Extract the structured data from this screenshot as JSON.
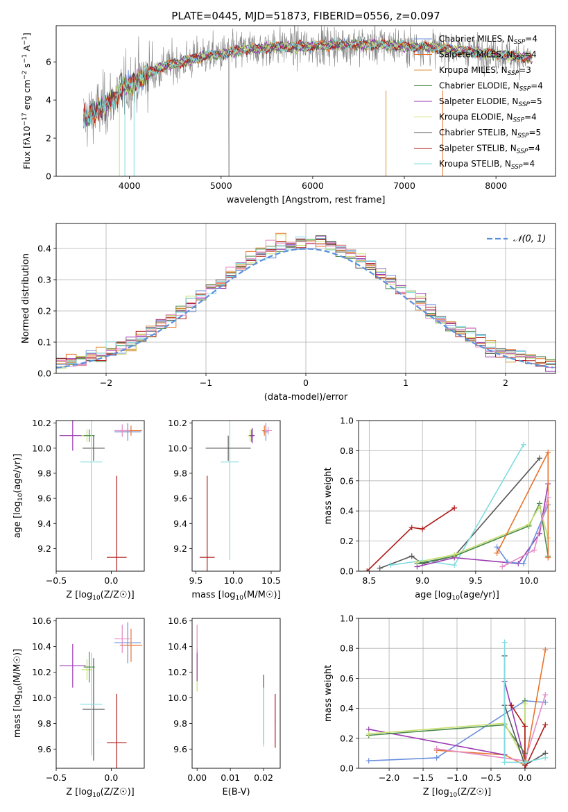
{
  "figure_title": "PLATE=0445, MJD=51873, FIBERID=0556, z=0.097",
  "colors": {
    "Chabrier MILES": "#6a8fdc",
    "Salpeter MILES": "#e8722a",
    "Kroupa MILES": "#d8903a",
    "Chabrier ELODIE": "#4a8a4a",
    "Salpeter ELODIE": "#9a3ab0",
    "Kroupa ELODIE": "#c8e070",
    "Chabrier STELIB": "#555555",
    "Salpeter STELIB": "#b01818",
    "Kroupa STELIB": "#80dce0",
    "pink": "#e38ac4",
    "grid": "#b0b0b0",
    "normal_curve": "#5b8fdc",
    "data_grey": "#808080"
  },
  "chart_data": [
    {
      "id": "spectrum",
      "type": "line",
      "title": "PLATE=0445, MJD=51873, FIBERID=0556, z=0.097",
      "xlabel": "wavelength [Angstrom, rest frame]",
      "ylabel": "Flux [fλ10⁻¹⁷ erg cm⁻² s⁻¹ A⁻¹]",
      "xlim": [
        3200,
        8650
      ],
      "ylim": [
        0,
        7.9
      ],
      "xticks": [
        4000,
        5000,
        6000,
        7000,
        8000
      ],
      "yticks": [
        0,
        2,
        4,
        6
      ],
      "grid": false,
      "legend_position": "right",
      "legend": [
        "Chabrier MILES, N_SSP=4",
        "Salpeter MILES, N_SSP=4",
        "Kroupa MILES, N_SSP=3",
        "Chabrier ELODIE, N_SSP=4",
        "Salpeter ELODIE, N_SSP=5",
        "Kroupa ELODIE, N_SSP=4",
        "Chabrier STELIB, N_SSP=5",
        "Salpeter STELIB, N_SSP=4",
        "Kroupa STELIB, N_SSP=4"
      ],
      "continuum": {
        "x": [
          3500,
          3600,
          3700,
          3800,
          3900,
          4000,
          4100,
          4200,
          4400,
          4600,
          4800,
          5000,
          5200,
          5400,
          5600,
          5800,
          6000,
          6200,
          6400,
          6600,
          6800,
          7000,
          7200,
          7400,
          7600,
          7800,
          8000,
          8200,
          8400
        ],
        "y": [
          3.0,
          3.3,
          3.6,
          4.0,
          4.5,
          4.8,
          5.1,
          5.4,
          5.8,
          6.0,
          6.3,
          6.4,
          6.6,
          6.7,
          6.8,
          6.8,
          6.8,
          6.9,
          6.9,
          6.9,
          6.9,
          6.8,
          6.8,
          6.7,
          6.6,
          6.5,
          6.4,
          6.3,
          6.2
        ]
      },
      "data_noise": 1.3
    },
    {
      "id": "residuals",
      "type": "line",
      "xlabel": "(data-model)/error",
      "ylabel": "Normed distribution",
      "xlim": [
        -2.5,
        2.5
      ],
      "ylim": [
        0,
        0.48
      ],
      "xticks": [
        -2,
        -1,
        0,
        1,
        2
      ],
      "yticks": [
        0.0,
        0.1,
        0.2,
        0.3,
        0.4
      ],
      "grid": true,
      "legend": [
        "N(0,1)"
      ],
      "legend_position": "top-right",
      "bin_width": 0.1
    },
    {
      "id": "age_vs_Z",
      "type": "scatter",
      "xlabel": "Z [log10(Z/Z☉)]",
      "ylabel": "age  [log10(age/yr)]",
      "xlim": [
        -0.5,
        0.3
      ],
      "ylim": [
        9.02,
        10.22
      ],
      "xticks": [
        -0.5,
        0.0
      ],
      "yticks": [
        9.2,
        9.4,
        9.6,
        9.8,
        10.0,
        10.2
      ],
      "points": [
        {
          "model": "Salpeter ELODIE",
          "x": -0.35,
          "y": 10.1,
          "xerr": 0.12,
          "yerr": 0.12
        },
        {
          "model": "Kroupa ELODIE",
          "x": -0.22,
          "y": 10.1,
          "xerr": 0.05,
          "yerr": 0.05
        },
        {
          "model": "Chabrier ELODIE",
          "x": -0.2,
          "y": 10.1,
          "xerr": 0.05,
          "yerr": 0.05
        },
        {
          "model": "Chabrier STELIB",
          "x": -0.16,
          "y": 10.0,
          "xerr": 0.1,
          "yerr": 0.1
        },
        {
          "model": "Kroupa STELIB",
          "x": -0.18,
          "y": 9.89,
          "xerr": 0.1,
          "yerr": 0.78
        },
        {
          "model": "Salpeter STELIB",
          "x": 0.05,
          "y": 9.13,
          "xerr": 0.09,
          "yerr": 0.65
        },
        {
          "model": "Chabrier MILES",
          "x": 0.15,
          "y": 10.13,
          "xerr": 0.12,
          "yerr": 0.07
        },
        {
          "model": "Salpeter MILES",
          "x": 0.18,
          "y": 10.14,
          "xerr": 0.1,
          "yerr": 0.04
        },
        {
          "model": "pink",
          "x": 0.1,
          "y": 10.14,
          "xerr": 0.07,
          "yerr": 0.05
        }
      ]
    },
    {
      "id": "age_vs_mass",
      "type": "scatter",
      "xlabel": "mass [log10(M/M☉)]",
      "xlim": [
        9.45,
        10.62
      ],
      "ylim": [
        9.02,
        10.22
      ],
      "xticks": [
        9.5,
        10.0,
        10.5
      ],
      "yticks": [
        9.2,
        9.4,
        9.6,
        9.8,
        10.0,
        10.2
      ],
      "points": [
        {
          "model": "Salpeter STELIB",
          "x": 9.65,
          "y": 9.13,
          "xerr": 0.1,
          "yerr": 0.65
        },
        {
          "model": "Kroupa STELIB",
          "x": 9.95,
          "y": 9.89,
          "xerr": 0.12,
          "yerr": 0.78
        },
        {
          "model": "Chabrier STELIB",
          "x": 9.93,
          "y": 10.0,
          "xerr": 0.3,
          "yerr": 0.1
        },
        {
          "model": "Kroupa ELODIE",
          "x": 10.22,
          "y": 10.1,
          "xerr": 0.03,
          "yerr": 0.05
        },
        {
          "model": "Chabrier ELODIE",
          "x": 10.24,
          "y": 10.1,
          "xerr": 0.03,
          "yerr": 0.05
        },
        {
          "model": "Salpeter ELODIE",
          "x": 10.25,
          "y": 10.1,
          "xerr": 0.03,
          "yerr": 0.06
        },
        {
          "model": "Chabrier MILES",
          "x": 10.43,
          "y": 10.13,
          "xerr": 0.04,
          "yerr": 0.07
        },
        {
          "model": "Salpeter MILES",
          "x": 10.41,
          "y": 10.14,
          "xerr": 0.03,
          "yerr": 0.04
        },
        {
          "model": "pink",
          "x": 10.46,
          "y": 10.14,
          "xerr": 0.05,
          "yerr": 0.03
        }
      ]
    },
    {
      "id": "weight_vs_age",
      "type": "line",
      "xlabel": "age  [log10(age/yr)]",
      "ylabel": "mass weight",
      "xlim": [
        8.4,
        10.25
      ],
      "ylim": [
        0,
        1.0
      ],
      "xticks": [
        8.5,
        9.0,
        9.5,
        10.0
      ],
      "yticks": [
        0.0,
        0.2,
        0.4,
        0.6,
        0.8,
        1.0
      ],
      "grid": true,
      "series": [
        {
          "model": "Salpeter STELIB",
          "x": [
            8.48,
            8.9,
            9.0,
            9.3
          ],
          "y": [
            0.0,
            0.29,
            0.28,
            0.42
          ]
        },
        {
          "model": "Chabrier STELIB",
          "x": [
            8.6,
            8.9,
            9.0,
            9.3,
            10.1
          ],
          "y": [
            0.02,
            0.1,
            0.05,
            0.1,
            0.75
          ]
        },
        {
          "model": "Kroupa STELIB",
          "x": [
            8.7,
            9.0,
            9.3,
            9.95
          ],
          "y": [
            0.04,
            0.07,
            0.04,
            0.84
          ]
        },
        {
          "model": "Chabrier ELODIE",
          "x": [
            8.95,
            9.3,
            10.0,
            10.1,
            10.18
          ],
          "y": [
            0.05,
            0.1,
            0.3,
            0.45,
            0.1
          ]
        },
        {
          "model": "Salpeter ELODIE",
          "x": [
            8.95,
            9.3,
            9.9,
            10.1,
            10.18
          ],
          "y": [
            0.03,
            0.09,
            0.05,
            0.25,
            0.58
          ]
        },
        {
          "model": "Kroupa ELODIE",
          "x": [
            8.95,
            9.3,
            10.0,
            10.1,
            10.18
          ],
          "y": [
            0.06,
            0.11,
            0.31,
            0.43,
            0.22
          ]
        },
        {
          "model": "Chabrier MILES",
          "x": [
            9.7,
            9.8,
            9.95,
            10.18
          ],
          "y": [
            0.16,
            0.06,
            0.05,
            0.44
          ]
        },
        {
          "model": "Salpeter MILES",
          "x": [
            9.7,
            10.18,
            10.18
          ],
          "y": [
            0.12,
            0.79,
            0.09
          ]
        },
        {
          "model": "pink",
          "x": [
            9.75,
            10.05,
            10.18
          ],
          "y": [
            0.03,
            0.14,
            0.49
          ]
        }
      ]
    },
    {
      "id": "mass_vs_Z",
      "type": "scatter",
      "xlabel": "Z [log10(Z/Z☉)]",
      "ylabel": "mass [log10(M/M☉)]",
      "xlim": [
        -0.5,
        0.3
      ],
      "ylim": [
        9.45,
        10.62
      ],
      "xticks": [
        -0.5,
        0.0
      ],
      "yticks": [
        9.6,
        9.8,
        10.0,
        10.2,
        10.4,
        10.6
      ],
      "points": [
        {
          "model": "Salpeter ELODIE",
          "x": -0.35,
          "y": 10.25,
          "xerr": 0.12,
          "yerr": 0.17
        },
        {
          "model": "Kroupa ELODIE",
          "x": -0.22,
          "y": 10.22,
          "xerr": 0.05,
          "yerr": 0.08
        },
        {
          "model": "Chabrier ELODIE",
          "x": -0.2,
          "y": 10.24,
          "xerr": 0.05,
          "yerr": 0.12
        },
        {
          "model": "Chabrier STELIB",
          "x": -0.16,
          "y": 9.91,
          "xerr": 0.1,
          "yerr": 0.4
        },
        {
          "model": "Kroupa STELIB",
          "x": -0.18,
          "y": 9.95,
          "xerr": 0.1,
          "yerr": 0.4
        },
        {
          "model": "Salpeter STELIB",
          "x": 0.05,
          "y": 9.65,
          "xerr": 0.09,
          "yerr": 0.38
        },
        {
          "model": "Chabrier MILES",
          "x": 0.15,
          "y": 10.43,
          "xerr": 0.12,
          "yerr": 0.16
        },
        {
          "model": "Salpeter MILES",
          "x": 0.18,
          "y": 10.41,
          "xerr": 0.1,
          "yerr": 0.13
        },
        {
          "model": "pink",
          "x": 0.1,
          "y": 10.46,
          "xerr": 0.07,
          "yerr": 0.11
        }
      ]
    },
    {
      "id": "mass_vs_ebv",
      "type": "scatter",
      "xlabel": "E(B-V)",
      "xlim": [
        -0.0015,
        0.025
      ],
      "ylim": [
        9.45,
        10.62
      ],
      "xticks": [
        0.0,
        0.01,
        0.02
      ],
      "yticks": [
        9.6,
        9.8,
        10.0,
        10.2,
        10.4,
        10.6
      ],
      "points": [
        {
          "model": "Kroupa ELODIE",
          "x": 0.0,
          "y": 10.22,
          "xerr": 0.0001,
          "yerr": 0.17
        },
        {
          "model": "Salpeter ELODIE",
          "x": 0.0,
          "y": 10.25,
          "xerr": 0.0001,
          "yerr": 0.12
        },
        {
          "model": "pink",
          "x": 0.0,
          "y": 10.46,
          "xerr": 0.0001,
          "yerr": 0.11
        },
        {
          "model": "Chabrier STELIB",
          "x": 0.02,
          "y": 9.91,
          "xerr": 0.0001,
          "yerr": 0.27
        },
        {
          "model": "Kroupa STELIB",
          "x": 0.02,
          "y": 9.85,
          "xerr": 0.0001,
          "yerr": 0.23
        },
        {
          "model": "Salpeter STELIB",
          "x": 0.0235,
          "y": 9.82,
          "xerr": 0.0001,
          "yerr": 0.21
        }
      ]
    },
    {
      "id": "weight_vs_Z",
      "type": "line",
      "xlabel": "Z [log10(Z/Z☉)]",
      "ylabel": "mass weight",
      "xlim": [
        -2.45,
        0.45
      ],
      "ylim": [
        0,
        1.0
      ],
      "xticks": [
        -2.0,
        -1.5,
        -1.0,
        -0.5,
        0.0
      ],
      "yticks": [
        0.0,
        0.2,
        0.4,
        0.6,
        0.8,
        1.0
      ],
      "grid": true,
      "series": [
        {
          "model": "Chabrier MILES",
          "x": [
            -2.3,
            -1.3,
            0.0,
            0.3
          ],
          "y": [
            0.05,
            0.07,
            0.45,
            0.44
          ]
        },
        {
          "model": "Salpeter MILES",
          "x": [
            -1.3,
            -0.3,
            0.0,
            0.3
          ],
          "y": [
            0.12,
            0.09,
            0.02,
            0.79
          ]
        },
        {
          "model": "pink",
          "x": [
            -1.3,
            0.0,
            0.3
          ],
          "y": [
            0.13,
            0.05,
            0.49
          ]
        },
        {
          "model": "Salpeter ELODIE",
          "x": [
            -2.3,
            -0.3,
            -0.3,
            0.0
          ],
          "y": [
            0.26,
            0.09,
            0.58,
            0.05
          ]
        },
        {
          "model": "Chabrier ELODIE",
          "x": [
            -2.3,
            -0.3,
            0.0,
            0.0
          ],
          "y": [
            0.22,
            0.29,
            0.1,
            0.45
          ]
        },
        {
          "model": "Kroupa ELODIE",
          "x": [
            -2.3,
            -0.3,
            0.0,
            0.0
          ],
          "y": [
            0.23,
            0.3,
            0.05,
            0.43
          ]
        },
        {
          "model": "Chabrier STELIB",
          "x": [
            -0.3,
            -0.3,
            0.0,
            0.3
          ],
          "y": [
            0.75,
            0.42,
            0.02,
            0.1
          ]
        },
        {
          "model": "Salpeter STELIB",
          "x": [
            -0.2,
            0.0,
            0.0,
            0.3
          ],
          "y": [
            0.42,
            0.28,
            0.0,
            0.29
          ]
        },
        {
          "model": "Kroupa STELIB",
          "x": [
            -0.3,
            -0.3,
            0.0,
            0.3
          ],
          "y": [
            0.84,
            0.04,
            0.04,
            0.07
          ]
        }
      ]
    }
  ]
}
